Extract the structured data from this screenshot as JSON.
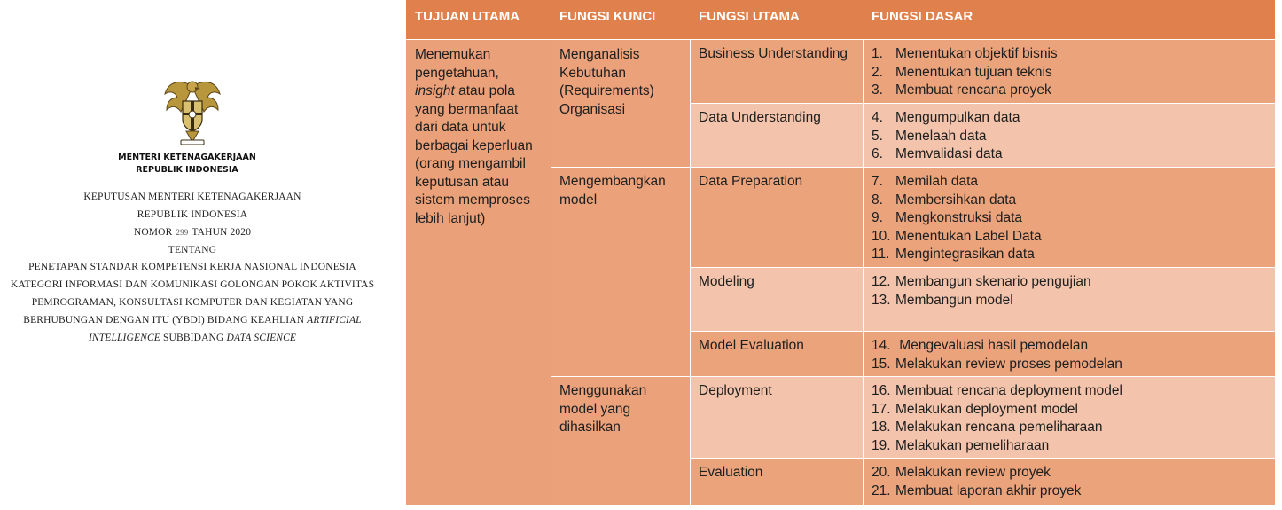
{
  "decree": {
    "ministry": [
      "MENTERI KETENAGAKERJAAN",
      "REPUBLIK INDONESIA"
    ],
    "title1": "KEPUTUSAN MENTERI KETENAGAKERJAAN",
    "title2": "REPUBLIK INDONESIA",
    "nomor_label": "NOMOR",
    "nomor_value": "299",
    "tahun_label": "TAHUN 2020",
    "tentang": "TENTANG",
    "lines": [
      "PENETAPAN STANDAR KOMPETENSI KERJA NASIONAL INDONESIA",
      "KATEGORI INFORMASI DAN KOMUNIKASI GOLONGAN POKOK AKTIVITAS",
      "PEMROGRAMAN, KONSULTASI KOMPUTER DAN KEGIATAN YANG"
    ],
    "line4_prefix": "BERHUBUNGAN DENGAN ITU (YBDI) BIDANG KEAHLIAN ",
    "line4_italic": "ARTIFICIAL",
    "line5_italic1": "INTELLIGENCE",
    "line5_mid": " SUBBIDANG ",
    "line5_italic2": "DATA SCIENCE",
    "emblem_icon": "garuda-emblem-icon"
  },
  "table": {
    "header_color": "#e0804c",
    "headers": [
      "TUJUAN UTAMA",
      "FUNGSI KUNCI",
      "FUNGSI UTAMA",
      "FUNGSI DASAR"
    ],
    "tujuan": {
      "line1": "Menemukan",
      "line2": "pengetahuan,",
      "line3_italic": "insight",
      "line3_rest": " atau  pola",
      "line4": "yang bermanfaat",
      "line5": "dari data untuk",
      "line6": "berbagai keperluan",
      "line7": "(orang mengambil",
      "line8": "keputusan atau",
      "line9": "sistem memproses",
      "line10": "lebih lanjut)"
    },
    "kunci": [
      [
        "Menganalisis",
        "Kebutuhan",
        "(Requirements)",
        "Organisasi"
      ],
      [
        "Mengembangkan",
        "model"
      ],
      [
        "Menggunakan",
        "model yang",
        "dihasilkan"
      ]
    ],
    "utama": [
      "Business Understanding",
      "Data Understanding",
      "Data Preparation",
      "Modeling",
      "Model Evaluation",
      "Deployment",
      "Evaluation"
    ],
    "dasar": [
      [
        [
          "1.",
          "Menentukan objektif bisnis"
        ],
        [
          "2.",
          "Menentukan tujuan teknis"
        ],
        [
          "3.",
          "Membuat rencana proyek"
        ]
      ],
      [
        [
          "4.",
          "Mengumpulkan data"
        ],
        [
          "5.",
          "Menelaah data"
        ],
        [
          "6.",
          "Memvalidasi data"
        ]
      ],
      [
        [
          "7.",
          "Memilah data"
        ],
        [
          "8.",
          "Membersihkan data"
        ],
        [
          "9.",
          "Mengkonstruksi data"
        ],
        [
          "10.",
          "Menentukan Label Data"
        ],
        [
          "11.",
          "Mengintegrasikan data"
        ]
      ],
      [
        [
          "12.",
          "Membangun skenario pengujian"
        ],
        [
          "13.",
          "Membangun model"
        ]
      ],
      [
        [
          "14.",
          " Mengevaluasi hasil pemodelan"
        ],
        [
          "15.",
          "Melakukan review proses pemodelan"
        ]
      ],
      [
        [
          "16.",
          "Membuat rencana deployment model"
        ],
        [
          "17.",
          "Melakukan deployment model"
        ],
        [
          "18.",
          "Melakukan rencana pemeliharaan"
        ],
        [
          "19.",
          "Melakukan pemeliharaan"
        ]
      ],
      [
        [
          "20.",
          "Melakukan review proyek"
        ],
        [
          "21.",
          "Membuat laporan akhir proyek"
        ]
      ]
    ]
  }
}
